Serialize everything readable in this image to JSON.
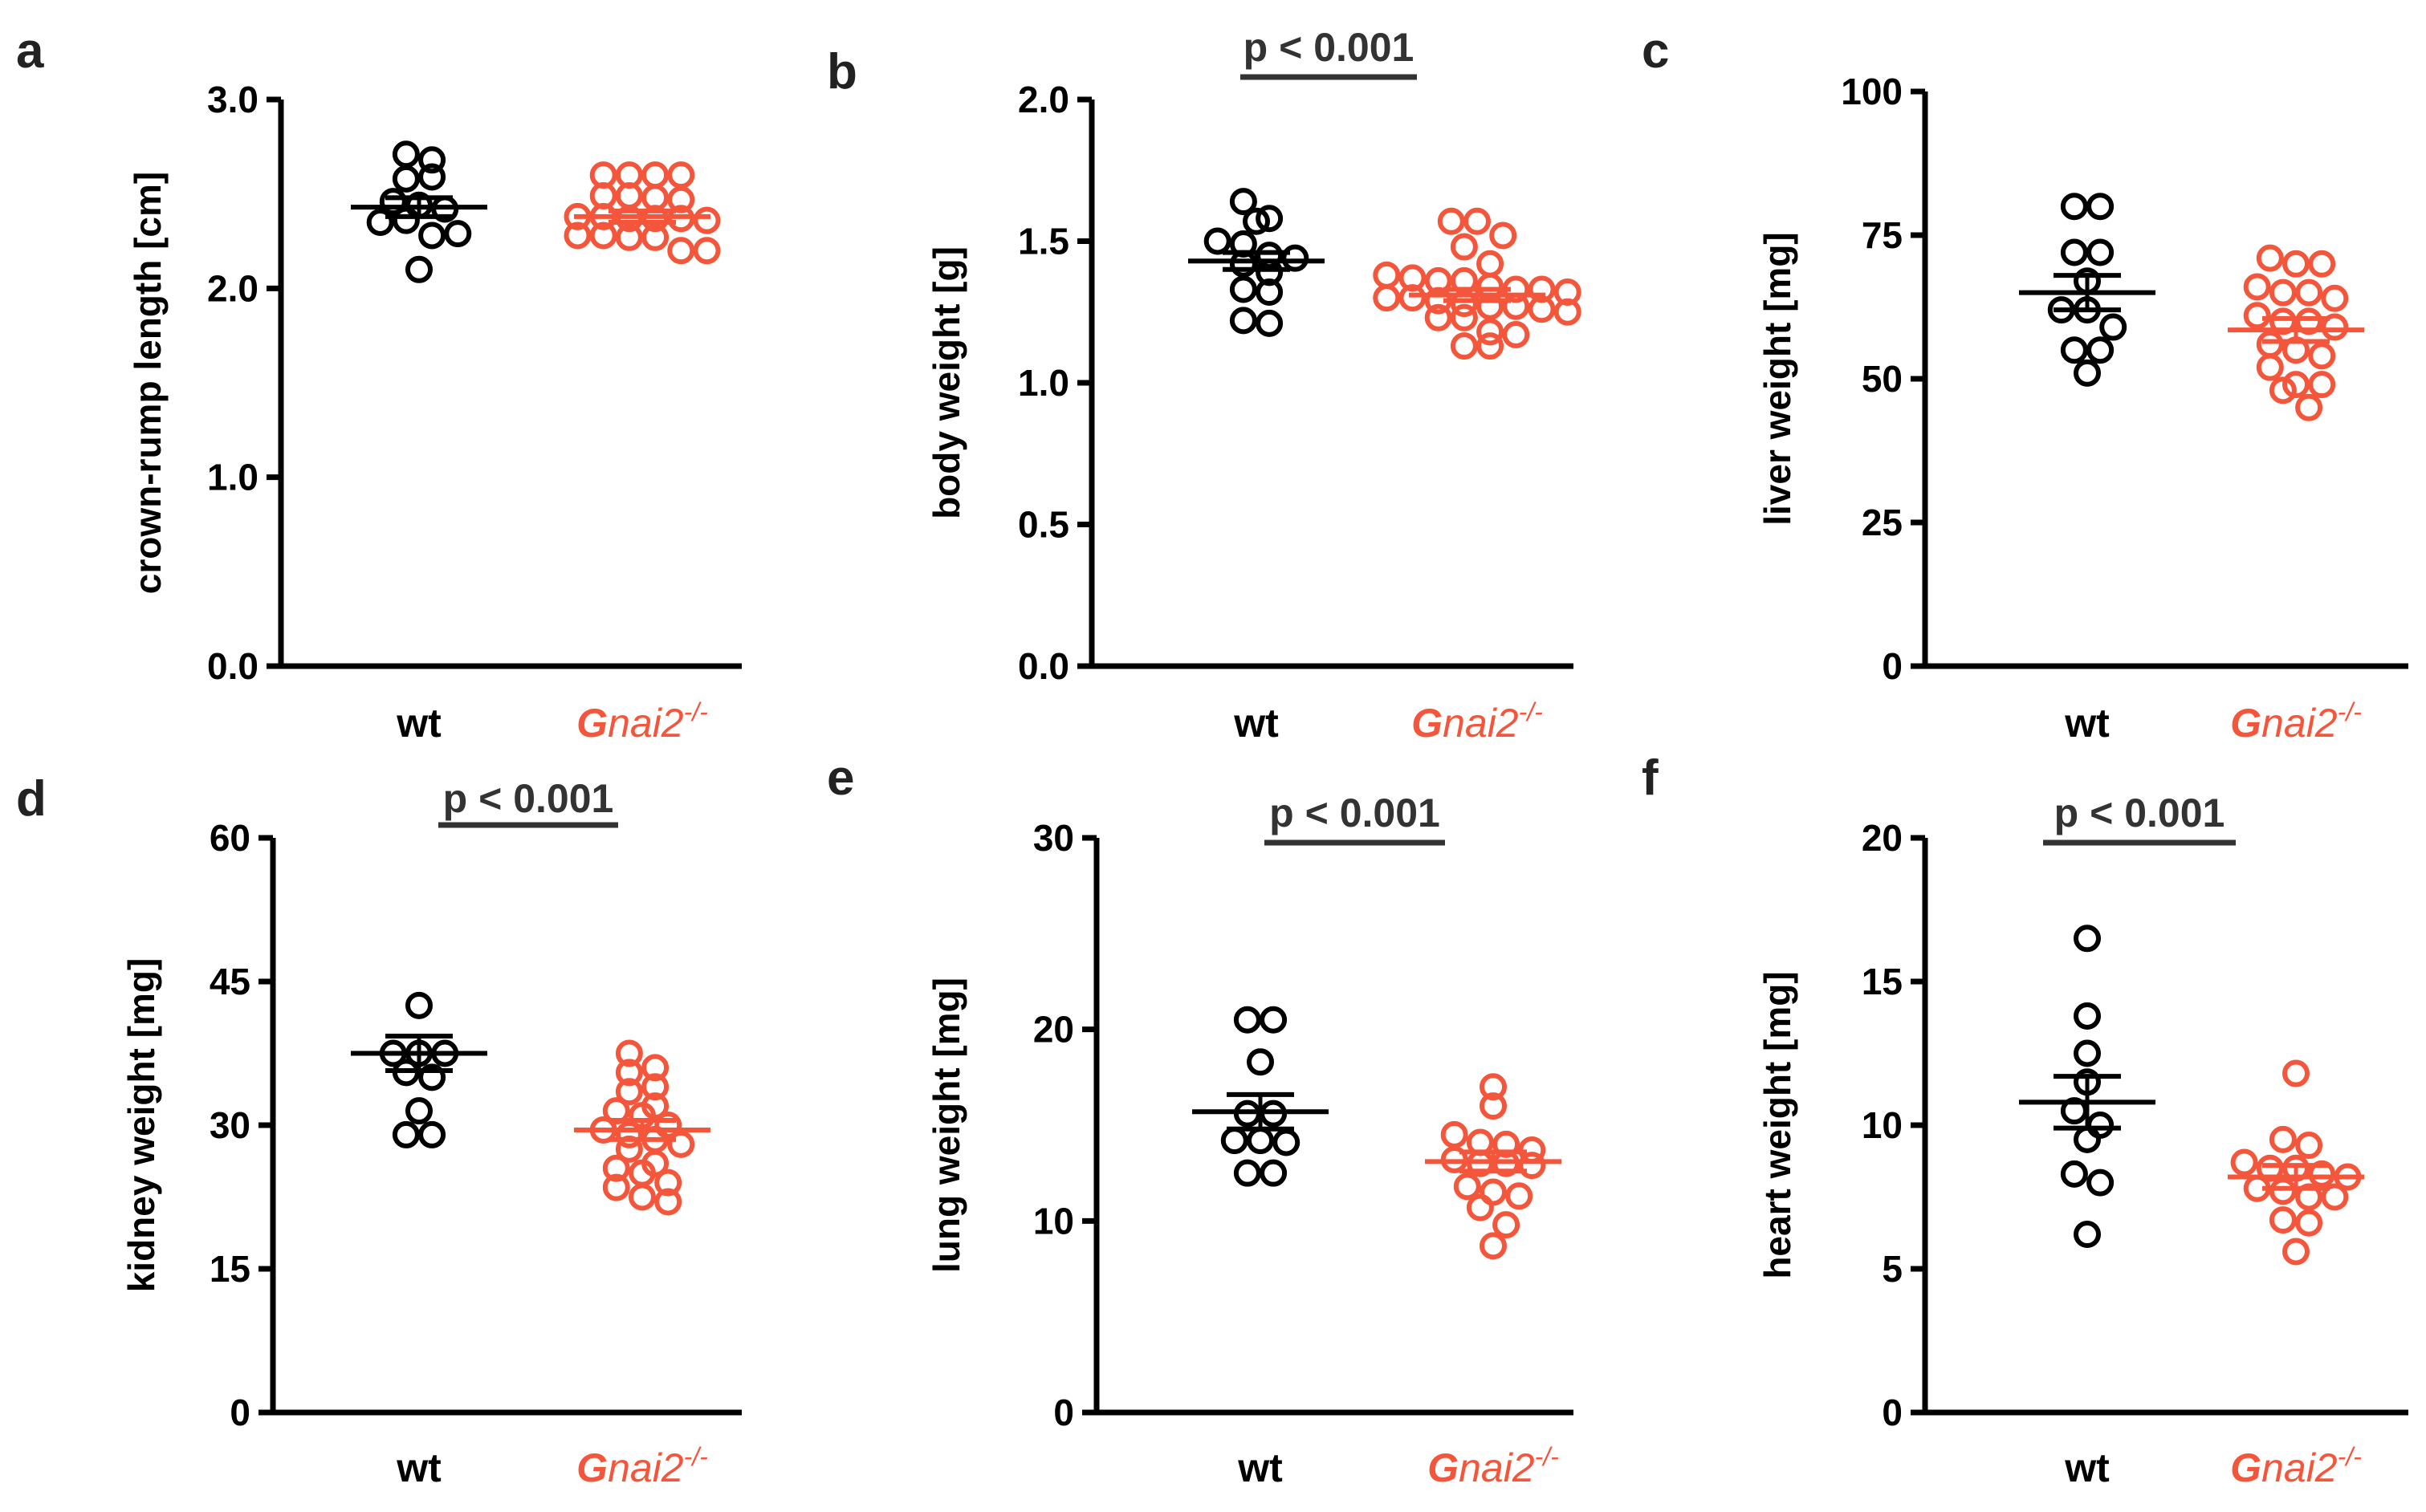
{
  "colors": {
    "wt": "#000000",
    "ko": "#f4563c",
    "bracket": "#333333"
  },
  "group_labels": {
    "wt": "wt",
    "ko_gene": "G",
    "ko_gene_rest": "nai2",
    "ko_superscript": "-/-"
  },
  "chart_data": [
    {
      "panel": "a",
      "type": "scatter",
      "ylabel": "crown-rump length [cm]",
      "ylim": [
        0,
        3.0
      ],
      "yticks": [
        0.0,
        1.0,
        2.0,
        3.0
      ],
      "ytick_labels": [
        "0.0",
        "1.0",
        "2.0",
        "3.0"
      ],
      "categories": [
        "wt",
        "Gnai2-/-"
      ],
      "significance": null,
      "series": [
        {
          "name": "wt",
          "mean": 2.43,
          "sem": 0.05,
          "values": [
            2.71,
            2.68,
            2.58,
            2.59,
            2.46,
            2.44,
            2.42,
            2.35,
            2.36,
            2.28,
            2.29,
            2.1
          ]
        },
        {
          "name": "Gnai2-/-",
          "mean": 2.38,
          "sem": 0.03,
          "values": [
            2.6,
            2.6,
            2.6,
            2.6,
            2.49,
            2.49,
            2.48,
            2.47,
            2.38,
            2.38,
            2.37,
            2.37,
            2.37,
            2.36,
            2.28,
            2.28,
            2.27,
            2.27,
            2.2,
            2.2
          ]
        }
      ]
    },
    {
      "panel": "b",
      "type": "scatter",
      "ylabel": "body weight [g]",
      "ylim": [
        0,
        2.0
      ],
      "yticks": [
        0.0,
        0.5,
        1.0,
        1.5,
        2.0
      ],
      "ytick_labels": [
        "0.0",
        "0.5",
        "1.0",
        "1.5",
        "2.0"
      ],
      "categories": [
        "wt",
        "Gnai2-/-"
      ],
      "significance": "p < 0.001",
      "series": [
        {
          "name": "wt",
          "mean": 1.43,
          "sem": 0.03,
          "values": [
            1.64,
            1.58,
            1.57,
            1.5,
            1.49,
            1.45,
            1.44,
            1.42,
            1.39,
            1.33,
            1.32,
            1.22,
            1.21
          ]
        },
        {
          "name": "Gnai2-/-",
          "mean": 1.31,
          "sem": 0.02,
          "values": [
            1.57,
            1.57,
            1.52,
            1.48,
            1.42,
            1.38,
            1.37,
            1.36,
            1.36,
            1.34,
            1.33,
            1.33,
            1.32,
            1.3,
            1.3,
            1.29,
            1.28,
            1.27,
            1.27,
            1.26,
            1.25,
            1.23,
            1.23,
            1.18,
            1.17,
            1.13,
            1.13
          ]
        }
      ]
    },
    {
      "panel": "c",
      "type": "scatter",
      "ylabel": "liver weight [mg]",
      "ylim": [
        0,
        100
      ],
      "yticks": [
        0,
        25,
        50,
        75,
        100
      ],
      "ytick_labels": [
        "0",
        "25",
        "50",
        "75",
        "100"
      ],
      "categories": [
        "wt",
        "Gnai2-/-"
      ],
      "significance": null,
      "series": [
        {
          "name": "wt",
          "mean": 65,
          "sem": 3,
          "values": [
            80,
            80,
            72,
            72,
            67,
            62,
            62,
            59,
            55,
            55,
            51
          ]
        },
        {
          "name": "Gnai2-/-",
          "mean": 58.5,
          "sem": 2,
          "values": [
            71,
            70,
            70,
            66,
            65,
            65,
            64,
            61,
            60,
            60,
            59,
            56,
            55,
            54,
            52,
            49,
            49,
            48,
            45
          ]
        }
      ]
    },
    {
      "panel": "d",
      "type": "scatter",
      "ylabel": "kidney weight [mg]",
      "ylim": [
        0,
        60
      ],
      "yticks": [
        0,
        15,
        30,
        45,
        60
      ],
      "ytick_labels": [
        "0",
        "15",
        "30",
        "45",
        "60"
      ],
      "categories": [
        "wt",
        "Gnai2-/-"
      ],
      "significance": "p < 0.001",
      "series": [
        {
          "name": "wt",
          "mean": 37.5,
          "sem": 1.8,
          "values": [
            42.5,
            37.5,
            37.5,
            37.5,
            35.5,
            35,
            31.5,
            29,
            29
          ]
        },
        {
          "name": "Gnai2-/-",
          "mean": 29.5,
          "sem": 1.0,
          "values": [
            37.5,
            36,
            35.5,
            34,
            33.5,
            32,
            31.5,
            31,
            30,
            29.5,
            29,
            28.5,
            28,
            27.5,
            26,
            25.5,
            25,
            24,
            23.5,
            22.5,
            22
          ]
        }
      ]
    },
    {
      "panel": "e",
      "type": "scatter",
      "ylabel": "lung weight [mg]",
      "ylim": [
        0,
        30
      ],
      "yticks": [
        0,
        10,
        20,
        30
      ],
      "ytick_labels": [
        "0",
        "10",
        "20",
        "30"
      ],
      "categories": [
        "wt",
        "Gnai2-/-"
      ],
      "significance": "p < 0.001",
      "series": [
        {
          "name": "wt",
          "mean": 15.7,
          "sem": 0.9,
          "values": [
            20.5,
            20.5,
            18.3,
            15.6,
            15.6,
            14.2,
            14.2,
            14.1,
            12.5,
            12.5
          ]
        },
        {
          "name": "Gnai2-/-",
          "mean": 13.1,
          "sem": 0.5,
          "values": [
            17,
            16,
            14.5,
            14.1,
            14.0,
            13.7,
            13.2,
            13.0,
            13.0,
            12.9,
            11.8,
            11.5,
            11.3,
            10.7,
            9.8,
            8.7
          ]
        }
      ]
    },
    {
      "panel": "f",
      "type": "scatter",
      "ylabel": "heart weight [mg]",
      "ylim": [
        0,
        20
      ],
      "yticks": [
        0,
        5,
        10,
        15,
        20
      ],
      "ytick_labels": [
        "0",
        "5",
        "10",
        "15",
        "20"
      ],
      "categories": [
        "wt",
        "Gnai2-/-"
      ],
      "significance": "p < 0.001",
      "series": [
        {
          "name": "wt",
          "mean": 10.8,
          "sem": 0.9,
          "values": [
            16.5,
            13.8,
            12.5,
            11.5,
            10.5,
            10.0,
            9.5,
            8.3,
            8.0,
            6.2
          ]
        },
        {
          "name": "Gnai2-/-",
          "mean": 8.2,
          "sem": 0.4,
          "values": [
            11.8,
            9.5,
            9.3,
            8.7,
            8.5,
            8.5,
            8.3,
            8.2,
            7.8,
            7.7,
            7.5,
            7.5,
            6.7,
            6.6,
            5.6
          ]
        }
      ]
    }
  ]
}
